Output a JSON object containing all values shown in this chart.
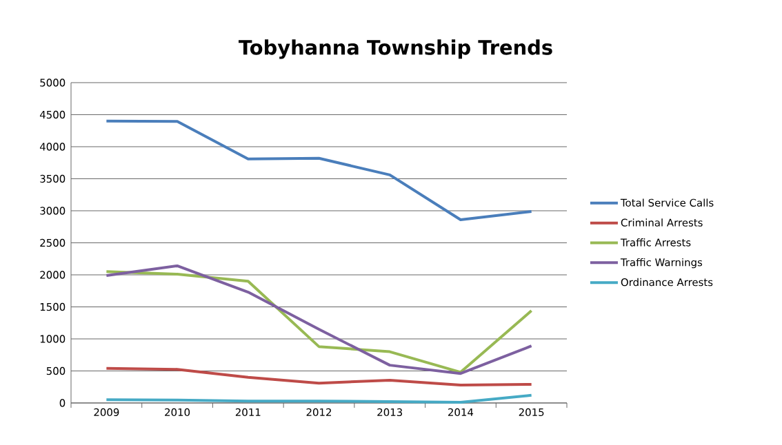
{
  "chart_data": {
    "type": "line",
    "title": "Tobyhanna Township Trends",
    "categories": [
      "2009",
      "2010",
      "2011",
      "2012",
      "2013",
      "2014",
      "2015"
    ],
    "series": [
      {
        "name": "Total Service Calls",
        "color": "#4a7ebb",
        "values": [
          4400,
          4395,
          3810,
          3820,
          3560,
          2860,
          2990
        ]
      },
      {
        "name": "Criminal Arrests",
        "color": "#be4b48",
        "values": [
          540,
          525,
          400,
          310,
          355,
          280,
          290
        ]
      },
      {
        "name": "Traffic Arrests",
        "color": "#98b954",
        "values": [
          2050,
          2010,
          1900,
          880,
          800,
          480,
          1440
        ]
      },
      {
        "name": "Traffic Warnings",
        "color": "#7d60a0",
        "values": [
          1990,
          2140,
          1730,
          1150,
          590,
          460,
          890
        ]
      },
      {
        "name": "Ordinance Arrests",
        "color": "#46aac5",
        "values": [
          50,
          45,
          30,
          30,
          22,
          10,
          120
        ]
      }
    ],
    "ylim": [
      0,
      5000
    ],
    "yticks": [
      0,
      500,
      1000,
      1500,
      2000,
      2500,
      3000,
      3500,
      4000,
      4500,
      5000
    ],
    "grid": "y",
    "legend": "right",
    "marker": "none",
    "line_style": "solid"
  }
}
